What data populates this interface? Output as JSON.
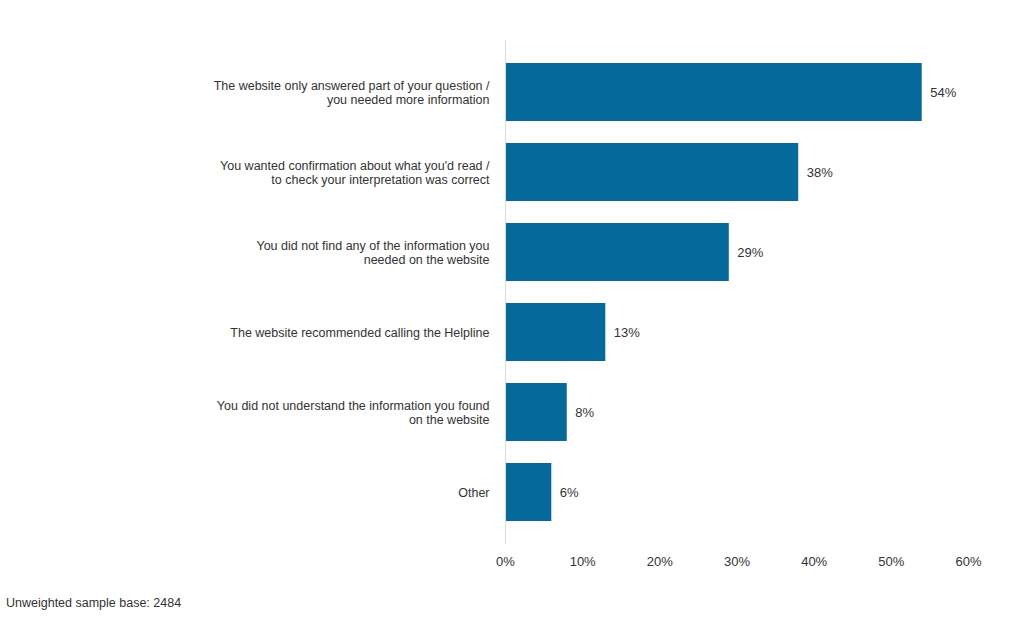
{
  "chart_data": {
    "type": "bar",
    "orientation": "horizontal",
    "categories": [
      "The website only answered part of your question / you needed more information",
      "You wanted confirmation about what you'd read / to check your interpretation was correct",
      "You did not find any of the information you needed on the website",
      "The website recommended calling the Helpline",
      "You did not understand the information you found on the website",
      "Other"
    ],
    "values": [
      54,
      38,
      29,
      13,
      8,
      6
    ],
    "value_labels": [
      "54%",
      "38%",
      "29%",
      "13%",
      "8%",
      "6%"
    ],
    "data_labels": true,
    "color": "#05699c",
    "xlim": [
      0,
      60
    ],
    "xticks": [
      {
        "value": 0,
        "label": "0%"
      },
      {
        "value": 10,
        "label": "10%"
      },
      {
        "value": 20,
        "label": "20%"
      },
      {
        "value": 30,
        "label": "30%"
      },
      {
        "value": 40,
        "label": "40%"
      },
      {
        "value": 50,
        "label": "50%"
      },
      {
        "value": 60,
        "label": "60%"
      }
    ],
    "grid": false,
    "caption": "Unweighted sample base: 2484"
  }
}
